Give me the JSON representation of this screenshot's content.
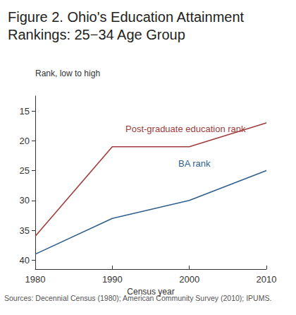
{
  "chart_data": {
    "type": "line",
    "title": "Figure 2. Ohio's Education Attainment Rankings: 25−34 Age Group",
    "ylabel": "Rank, low to high",
    "xlabel": "Census year",
    "source": "Sources: Decennial Census (1980); American Community Survey (2010); IPUMS.",
    "x": [
      1980,
      1990,
      2000,
      2010
    ],
    "series": [
      {
        "name": "Post-graduate education rank",
        "color": "#a03c3c",
        "values": [
          36,
          21,
          21,
          17
        ]
      },
      {
        "name": "BA rank",
        "color": "#2e5f8e",
        "values": [
          39,
          33,
          30,
          25
        ]
      }
    ],
    "xlim": [
      1980,
      2010
    ],
    "xticks": [
      1980,
      1990,
      2000,
      2010
    ],
    "ylim": [
      41.5,
      12.5
    ],
    "yticks": [
      15,
      20,
      25,
      30,
      35,
      40
    ],
    "grid": false,
    "marker": "none"
  }
}
